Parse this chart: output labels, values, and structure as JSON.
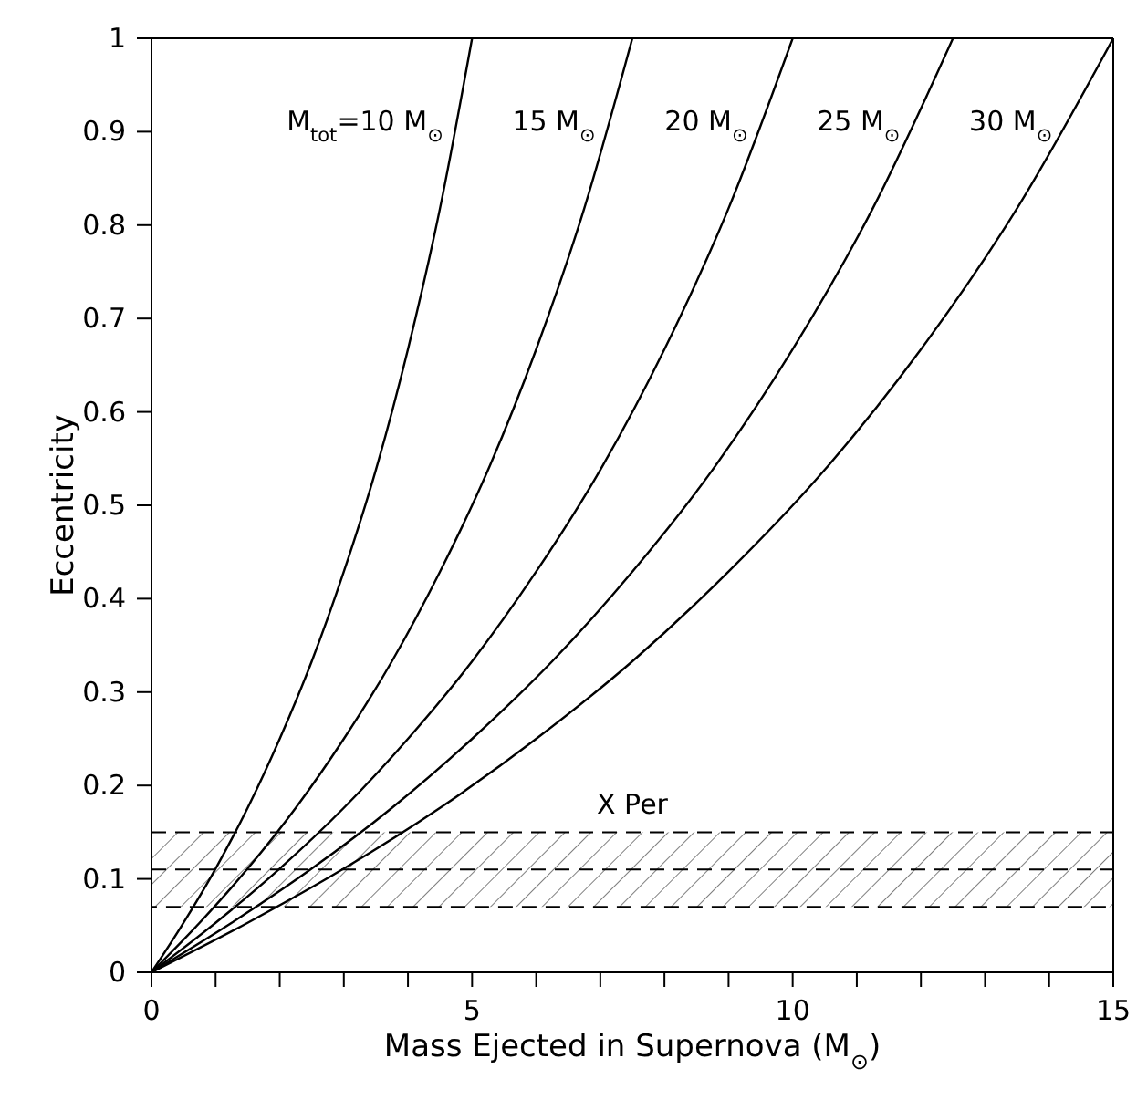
{
  "chart_data": {
    "type": "line",
    "xlabel": "Mass Ejected in Supernova (M$_{⊙}$)",
    "ylabel": "Eccentricity",
    "xlim": [
      0,
      15
    ],
    "ylim": [
      0,
      1
    ],
    "xticks": [
      0,
      {
        "value": 1,
        "label": null
      },
      {
        "value": 2,
        "label": null
      },
      {
        "value": 3,
        "label": null
      },
      {
        "value": 4,
        "label": null
      },
      5,
      {
        "value": 6,
        "label": null
      },
      {
        "value": 7,
        "label": null
      },
      {
        "value": 8,
        "label": null
      },
      {
        "value": 9,
        "label": null
      },
      10,
      {
        "value": 11,
        "label": null
      },
      {
        "value": 12,
        "label": null
      },
      {
        "value": 13,
        "label": null
      },
      {
        "value": 14,
        "label": null
      },
      15
    ],
    "yticks": [
      0,
      0.1,
      0.2,
      0.3,
      0.4,
      0.5,
      0.6,
      0.7,
      0.8,
      0.9,
      1
    ],
    "marker": "none",
    "line_style": "solid",
    "series": [
      {
        "name": "M$_{tot}$=10 M$_{⊙}$",
        "color": "#000000",
        "x": [
          0,
          0.5,
          1,
          1.5,
          2,
          2.5,
          3,
          3.5,
          4,
          4.5,
          5
        ],
        "values": [
          0,
          0.053,
          0.111,
          0.176,
          0.25,
          0.333,
          0.429,
          0.538,
          0.667,
          0.818,
          1
        ]
      },
      {
        "name": "15 M$_{⊙}$",
        "color": "#000000",
        "x": [
          0,
          0.75,
          1.5,
          2.25,
          3,
          3.75,
          4.5,
          5.25,
          6,
          6.75,
          7.5
        ],
        "values": [
          0,
          0.053,
          0.111,
          0.176,
          0.25,
          0.333,
          0.429,
          0.538,
          0.667,
          0.818,
          1
        ]
      },
      {
        "name": "20 M$_{⊙}$",
        "color": "#000000",
        "x": [
          0,
          1,
          2,
          3,
          4,
          5,
          6,
          7,
          8,
          9,
          10
        ],
        "values": [
          0,
          0.053,
          0.111,
          0.176,
          0.25,
          0.333,
          0.429,
          0.538,
          0.667,
          0.818,
          1
        ]
      },
      {
        "name": "25 M$_{⊙}$",
        "color": "#000000",
        "x": [
          0,
          1.25,
          2.5,
          3.75,
          5,
          6.25,
          7.5,
          8.75,
          10,
          11.25,
          12.5
        ],
        "values": [
          0,
          0.053,
          0.111,
          0.176,
          0.25,
          0.333,
          0.429,
          0.538,
          0.667,
          0.818,
          1
        ]
      },
      {
        "name": "30 M$_{⊙}$",
        "color": "#000000",
        "x": [
          0,
          1.5,
          3,
          4.5,
          6,
          7.5,
          9,
          10.5,
          12,
          13.5,
          15
        ],
        "values": [
          0,
          0.053,
          0.111,
          0.176,
          0.25,
          0.333,
          0.429,
          0.538,
          0.667,
          0.818,
          1
        ]
      }
    ],
    "bands": [
      {
        "axis": "y",
        "from": 0.07,
        "to": 0.15,
        "label": "X Per",
        "color": "#000000"
      }
    ],
    "ref_lines": [
      {
        "axis": "y",
        "value": 0.11,
        "color": "#000000",
        "line_style": "dashed"
      }
    ]
  }
}
